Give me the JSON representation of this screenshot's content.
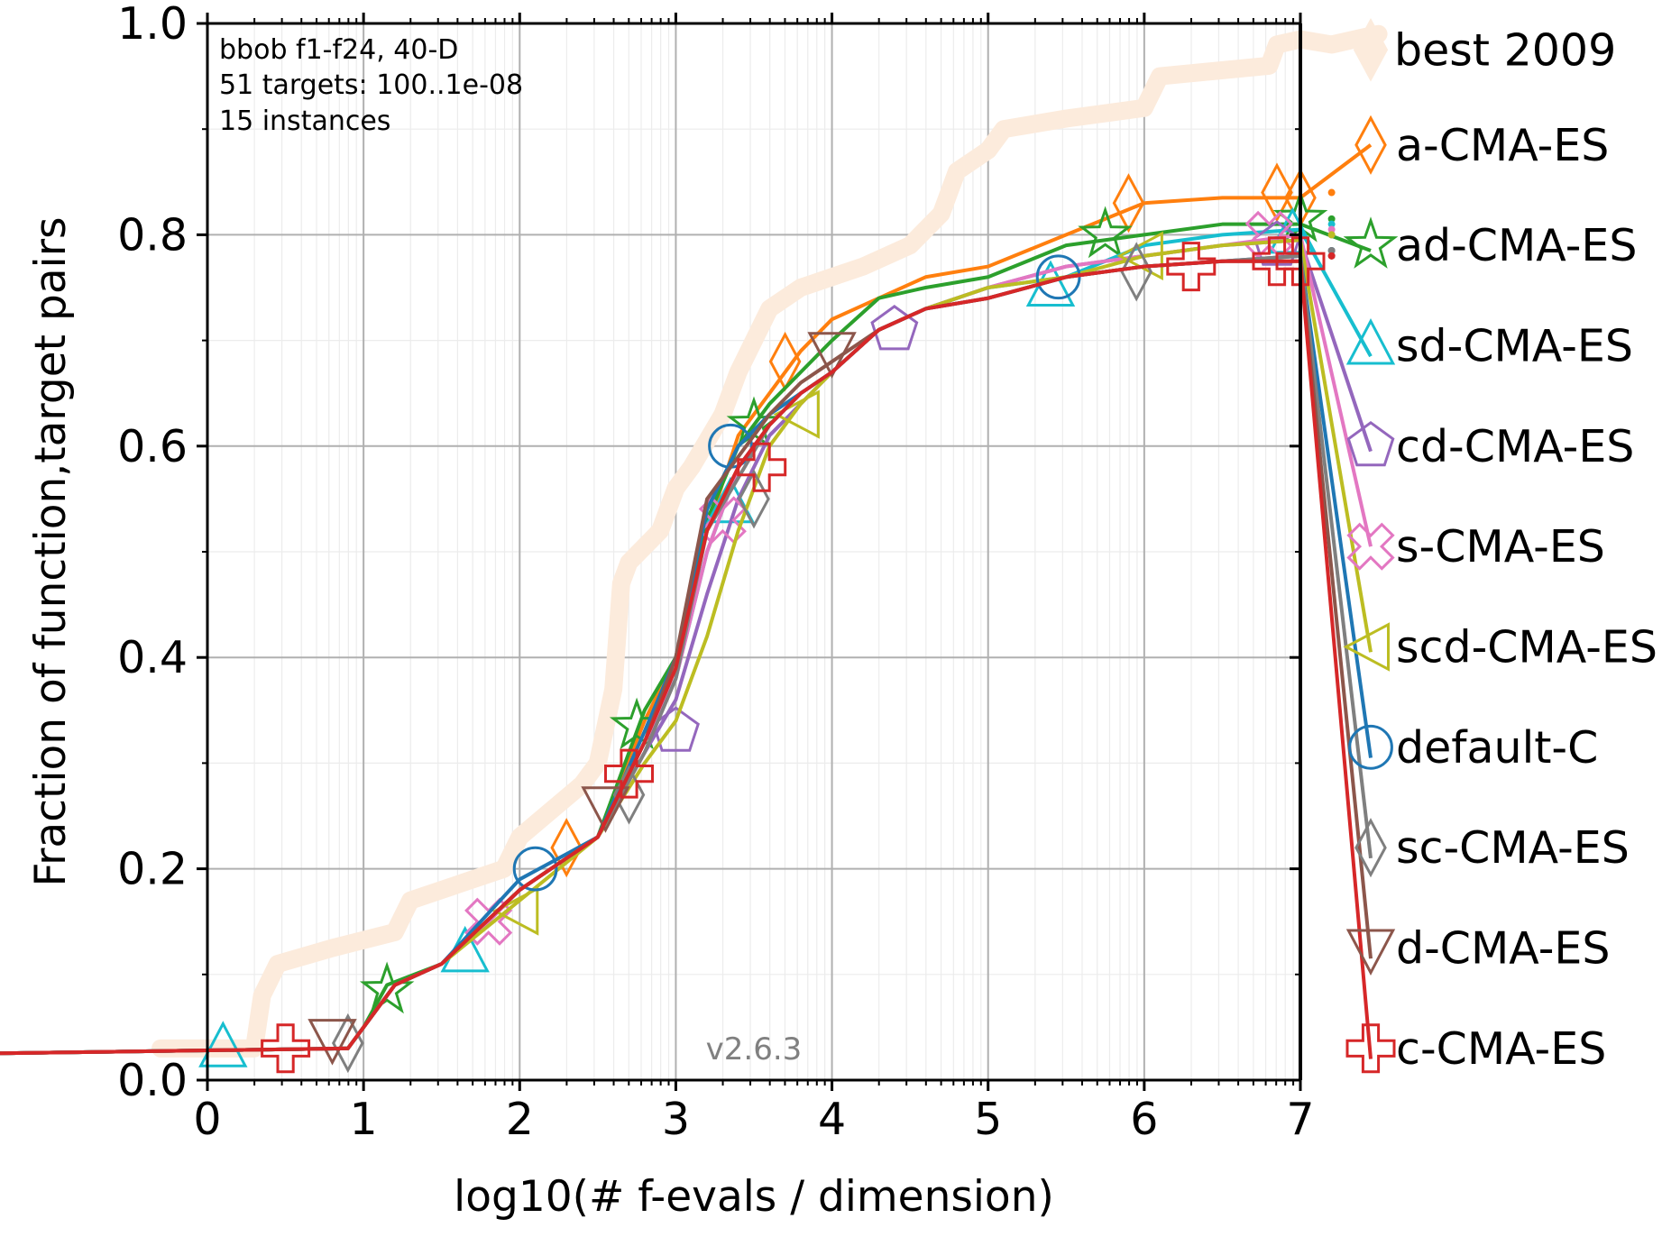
{
  "chart_data": {
    "type": "line",
    "title": "",
    "xlabel": "log10(# f-evals / dimension)",
    "ylabel": "Fraction of function,target pairs",
    "xlim": [
      0,
      7
    ],
    "ylim": [
      0,
      1
    ],
    "xticks": [
      "0",
      "1",
      "2",
      "3",
      "4",
      "5",
      "6",
      "7"
    ],
    "yticks": [
      "0.0",
      "0.2",
      "0.4",
      "0.6",
      "0.8",
      "1.0"
    ],
    "grid": true,
    "legend": "right",
    "annotation_lines": [
      "bbob f1-f24, 40-D",
      "51 targets: 100..1e-08",
      "15 instances"
    ],
    "version": "v2.6.3",
    "reference": {
      "name": "best 2009",
      "color": "#fcebdc",
      "points": [
        [
          -0.3,
          0.03
        ],
        [
          0.3,
          0.03
        ],
        [
          0.35,
          0.08
        ],
        [
          0.45,
          0.11
        ],
        [
          0.8,
          0.125
        ],
        [
          1.2,
          0.14
        ],
        [
          1.3,
          0.17
        ],
        [
          1.9,
          0.2
        ],
        [
          2.0,
          0.23
        ],
        [
          2.4,
          0.28
        ],
        [
          2.5,
          0.3
        ],
        [
          2.6,
          0.37
        ],
        [
          2.65,
          0.47
        ],
        [
          2.7,
          0.49
        ],
        [
          2.9,
          0.52
        ],
        [
          3.0,
          0.56
        ],
        [
          3.1,
          0.58
        ],
        [
          3.3,
          0.63
        ],
        [
          3.4,
          0.67
        ],
        [
          3.5,
          0.7
        ],
        [
          3.6,
          0.73
        ],
        [
          3.8,
          0.75
        ],
        [
          4.0,
          0.76
        ],
        [
          4.2,
          0.77
        ],
        [
          4.5,
          0.79
        ],
        [
          4.7,
          0.82
        ],
        [
          4.8,
          0.86
        ],
        [
          5.0,
          0.88
        ],
        [
          5.1,
          0.9
        ],
        [
          5.5,
          0.91
        ],
        [
          6.0,
          0.92
        ],
        [
          6.1,
          0.95
        ],
        [
          6.8,
          0.96
        ],
        [
          6.85,
          0.98
        ],
        [
          7.0,
          0.985
        ],
        [
          7.2,
          0.98
        ],
        [
          7.5,
          0.99
        ]
      ]
    },
    "series": [
      {
        "name": "a-CMA-ES",
        "color": "#ff7f0e",
        "marker": "diamond",
        "end": 0.885,
        "points": [
          [
            -1.5,
            0.025
          ],
          [
            0.9,
            0.03
          ],
          [
            1.0,
            0.05
          ],
          [
            1.2,
            0.09
          ],
          [
            1.5,
            0.11
          ],
          [
            2.0,
            0.18
          ],
          [
            2.5,
            0.23
          ],
          [
            2.8,
            0.34
          ],
          [
            3.0,
            0.4
          ],
          [
            3.2,
            0.52
          ],
          [
            3.4,
            0.61
          ],
          [
            3.6,
            0.65
          ],
          [
            3.8,
            0.69
          ],
          [
            4.0,
            0.72
          ],
          [
            4.3,
            0.74
          ],
          [
            4.6,
            0.76
          ],
          [
            5.0,
            0.77
          ],
          [
            5.5,
            0.8
          ],
          [
            6.0,
            0.83
          ],
          [
            6.5,
            0.835
          ],
          [
            7.0,
            0.835
          ]
        ],
        "markers": [
          [
            2.3,
            0.22
          ],
          [
            3.7,
            0.68
          ],
          [
            5.9,
            0.83
          ],
          [
            6.85,
            0.84
          ],
          [
            7.0,
            0.835
          ]
        ]
      },
      {
        "name": "ad-CMA-ES",
        "color": "#2ca02c",
        "marker": "star",
        "end": 0.785,
        "points": [
          [
            -1.5,
            0.025
          ],
          [
            0.9,
            0.03
          ],
          [
            1.0,
            0.05
          ],
          [
            1.15,
            0.09
          ],
          [
            1.5,
            0.11
          ],
          [
            2.0,
            0.18
          ],
          [
            2.5,
            0.23
          ],
          [
            2.8,
            0.35
          ],
          [
            3.0,
            0.4
          ],
          [
            3.2,
            0.53
          ],
          [
            3.4,
            0.6
          ],
          [
            3.6,
            0.64
          ],
          [
            3.8,
            0.67
          ],
          [
            4.0,
            0.7
          ],
          [
            4.3,
            0.74
          ],
          [
            4.6,
            0.75
          ],
          [
            5.0,
            0.76
          ],
          [
            5.5,
            0.79
          ],
          [
            6.0,
            0.8
          ],
          [
            6.5,
            0.81
          ],
          [
            7.0,
            0.81
          ]
        ],
        "markers": [
          [
            1.15,
            0.085
          ],
          [
            2.75,
            0.335
          ],
          [
            3.5,
            0.62
          ],
          [
            5.75,
            0.8
          ],
          [
            7.0,
            0.815
          ]
        ]
      },
      {
        "name": "sd-CMA-ES",
        "color": "#17becf",
        "marker": "triangle-up",
        "end": 0.685,
        "points": [
          [
            -1.5,
            0.025
          ],
          [
            0.9,
            0.03
          ],
          [
            1.0,
            0.05
          ],
          [
            1.2,
            0.09
          ],
          [
            1.5,
            0.11
          ],
          [
            2.0,
            0.18
          ],
          [
            2.5,
            0.23
          ],
          [
            2.8,
            0.32
          ],
          [
            3.0,
            0.38
          ],
          [
            3.2,
            0.5
          ],
          [
            3.4,
            0.58
          ],
          [
            3.6,
            0.62
          ],
          [
            3.8,
            0.65
          ],
          [
            4.0,
            0.67
          ],
          [
            4.3,
            0.71
          ],
          [
            4.6,
            0.73
          ],
          [
            5.0,
            0.75
          ],
          [
            5.5,
            0.76
          ],
          [
            6.0,
            0.79
          ],
          [
            6.5,
            0.8
          ],
          [
            7.0,
            0.805
          ]
        ],
        "markers": [
          [
            0.1,
            0.03
          ],
          [
            1.65,
            0.12
          ],
          [
            3.35,
            0.545
          ],
          [
            5.4,
            0.75
          ],
          [
            6.95,
            0.8
          ]
        ]
      },
      {
        "name": "cd-CMA-ES",
        "color": "#9467bd",
        "marker": "pentagon",
        "end": 0.595,
        "points": [
          [
            -1.5,
            0.025
          ],
          [
            0.9,
            0.03
          ],
          [
            1.0,
            0.05
          ],
          [
            1.2,
            0.09
          ],
          [
            1.5,
            0.11
          ],
          [
            2.0,
            0.18
          ],
          [
            2.5,
            0.23
          ],
          [
            2.8,
            0.31
          ],
          [
            3.0,
            0.36
          ],
          [
            3.2,
            0.46
          ],
          [
            3.4,
            0.55
          ],
          [
            3.6,
            0.61
          ],
          [
            3.8,
            0.64
          ],
          [
            4.0,
            0.67
          ],
          [
            4.3,
            0.71
          ],
          [
            4.6,
            0.73
          ],
          [
            5.0,
            0.75
          ],
          [
            5.5,
            0.77
          ],
          [
            6.0,
            0.78
          ],
          [
            6.5,
            0.79
          ],
          [
            7.0,
            0.795
          ]
        ],
        "markers": [
          [
            3.0,
            0.33
          ],
          [
            4.4,
            0.71
          ],
          [
            6.85,
            0.79
          ]
        ]
      },
      {
        "name": "s-CMA-ES",
        "color": "#e377c2",
        "marker": "cross",
        "end": 0.505,
        "points": [
          [
            -1.5,
            0.025
          ],
          [
            0.9,
            0.03
          ],
          [
            1.0,
            0.05
          ],
          [
            1.2,
            0.09
          ],
          [
            1.5,
            0.11
          ],
          [
            1.8,
            0.15
          ],
          [
            2.0,
            0.18
          ],
          [
            2.5,
            0.23
          ],
          [
            2.8,
            0.32
          ],
          [
            3.0,
            0.38
          ],
          [
            3.2,
            0.5
          ],
          [
            3.4,
            0.58
          ],
          [
            3.6,
            0.62
          ],
          [
            3.8,
            0.65
          ],
          [
            4.0,
            0.67
          ],
          [
            4.3,
            0.71
          ],
          [
            4.6,
            0.73
          ],
          [
            5.0,
            0.75
          ],
          [
            5.5,
            0.77
          ],
          [
            6.0,
            0.78
          ],
          [
            6.5,
            0.79
          ],
          [
            7.0,
            0.8
          ]
        ],
        "markers": [
          [
            1.8,
            0.15
          ],
          [
            3.3,
            0.53
          ],
          [
            6.8,
            0.8
          ]
        ]
      },
      {
        "name": "scd-CMA-ES",
        "color": "#bcbd22",
        "marker": "triangle-left",
        "end": 0.405,
        "points": [
          [
            -1.5,
            0.025
          ],
          [
            0.9,
            0.03
          ],
          [
            1.0,
            0.05
          ],
          [
            1.2,
            0.09
          ],
          [
            1.5,
            0.11
          ],
          [
            2.0,
            0.17
          ],
          [
            2.5,
            0.23
          ],
          [
            2.8,
            0.3
          ],
          [
            3.0,
            0.34
          ],
          [
            3.2,
            0.42
          ],
          [
            3.4,
            0.52
          ],
          [
            3.6,
            0.6
          ],
          [
            3.8,
            0.64
          ],
          [
            4.0,
            0.67
          ],
          [
            4.3,
            0.71
          ],
          [
            4.6,
            0.73
          ],
          [
            5.0,
            0.75
          ],
          [
            5.5,
            0.76
          ],
          [
            6.0,
            0.78
          ],
          [
            6.5,
            0.79
          ],
          [
            7.0,
            0.795
          ]
        ],
        "markers": [
          [
            2.0,
            0.16
          ],
          [
            3.8,
            0.63
          ],
          [
            6.0,
            0.78
          ]
        ]
      },
      {
        "name": "default-C",
        "color": "#1f77b4",
        "marker": "circle",
        "end": 0.305,
        "points": [
          [
            -1.5,
            0.025
          ],
          [
            0.9,
            0.03
          ],
          [
            1.0,
            0.05
          ],
          [
            1.2,
            0.09
          ],
          [
            1.5,
            0.11
          ],
          [
            2.0,
            0.19
          ],
          [
            2.5,
            0.23
          ],
          [
            2.8,
            0.33
          ],
          [
            3.0,
            0.4
          ],
          [
            3.2,
            0.54
          ],
          [
            3.4,
            0.6
          ],
          [
            3.6,
            0.63
          ],
          [
            3.8,
            0.65
          ],
          [
            4.0,
            0.67
          ],
          [
            4.3,
            0.71
          ],
          [
            4.6,
            0.73
          ],
          [
            5.0,
            0.74
          ],
          [
            5.5,
            0.76
          ],
          [
            6.0,
            0.77
          ],
          [
            6.5,
            0.775
          ],
          [
            7.0,
            0.78
          ]
        ],
        "markers": [
          [
            2.1,
            0.2
          ],
          [
            3.35,
            0.6
          ],
          [
            5.45,
            0.76
          ]
        ]
      },
      {
        "name": "sc-CMA-ES",
        "color": "#7f7f7f",
        "marker": "diamond",
        "end": 0.21,
        "points": [
          [
            -1.5,
            0.025
          ],
          [
            0.9,
            0.03
          ],
          [
            1.0,
            0.05
          ],
          [
            1.2,
            0.09
          ],
          [
            1.5,
            0.11
          ],
          [
            2.0,
            0.18
          ],
          [
            2.5,
            0.23
          ],
          [
            2.8,
            0.31
          ],
          [
            3.0,
            0.38
          ],
          [
            3.2,
            0.52
          ],
          [
            3.4,
            0.57
          ],
          [
            3.6,
            0.62
          ],
          [
            3.8,
            0.65
          ],
          [
            4.0,
            0.67
          ],
          [
            4.3,
            0.71
          ],
          [
            4.6,
            0.73
          ],
          [
            5.0,
            0.74
          ],
          [
            5.5,
            0.76
          ],
          [
            6.0,
            0.77
          ],
          [
            6.5,
            0.775
          ],
          [
            7.0,
            0.78
          ]
        ],
        "markers": [
          [
            0.9,
            0.035
          ],
          [
            2.7,
            0.27
          ],
          [
            3.5,
            0.55
          ],
          [
            5.95,
            0.765
          ]
        ]
      },
      {
        "name": "d-CMA-ES",
        "color": "#8c564b",
        "marker": "triangle-down",
        "end": 0.115,
        "points": [
          [
            -1.5,
            0.025
          ],
          [
            0.9,
            0.03
          ],
          [
            1.0,
            0.05
          ],
          [
            1.2,
            0.09
          ],
          [
            1.5,
            0.11
          ],
          [
            2.0,
            0.18
          ],
          [
            2.5,
            0.23
          ],
          [
            2.8,
            0.32
          ],
          [
            3.0,
            0.4
          ],
          [
            3.2,
            0.55
          ],
          [
            3.4,
            0.59
          ],
          [
            3.6,
            0.63
          ],
          [
            3.8,
            0.66
          ],
          [
            4.0,
            0.68
          ],
          [
            4.3,
            0.71
          ],
          [
            4.6,
            0.73
          ],
          [
            5.0,
            0.74
          ],
          [
            5.5,
            0.76
          ],
          [
            6.0,
            0.77
          ],
          [
            6.5,
            0.775
          ],
          [
            7.0,
            0.775
          ]
        ],
        "markers": [
          [
            0.8,
            0.04
          ],
          [
            2.55,
            0.26
          ],
          [
            4.0,
            0.69
          ]
        ]
      },
      {
        "name": "c-CMA-ES",
        "color": "#d62728",
        "marker": "plus",
        "end": 0.02,
        "points": [
          [
            -1.5,
            0.025
          ],
          [
            0.9,
            0.03
          ],
          [
            1.0,
            0.05
          ],
          [
            1.2,
            0.09
          ],
          [
            1.5,
            0.11
          ],
          [
            2.0,
            0.18
          ],
          [
            2.5,
            0.23
          ],
          [
            2.8,
            0.32
          ],
          [
            3.0,
            0.39
          ],
          [
            3.2,
            0.52
          ],
          [
            3.4,
            0.58
          ],
          [
            3.6,
            0.62
          ],
          [
            3.8,
            0.65
          ],
          [
            4.0,
            0.67
          ],
          [
            4.3,
            0.71
          ],
          [
            4.6,
            0.73
          ],
          [
            5.0,
            0.74
          ],
          [
            5.5,
            0.76
          ],
          [
            6.0,
            0.77
          ],
          [
            6.5,
            0.775
          ],
          [
            7.0,
            0.775
          ]
        ],
        "markers": [
          [
            0.5,
            0.03
          ],
          [
            2.7,
            0.29
          ],
          [
            3.55,
            0.58
          ],
          [
            6.3,
            0.77
          ],
          [
            6.85,
            0.775
          ],
          [
            7.0,
            0.775
          ]
        ]
      }
    ]
  }
}
